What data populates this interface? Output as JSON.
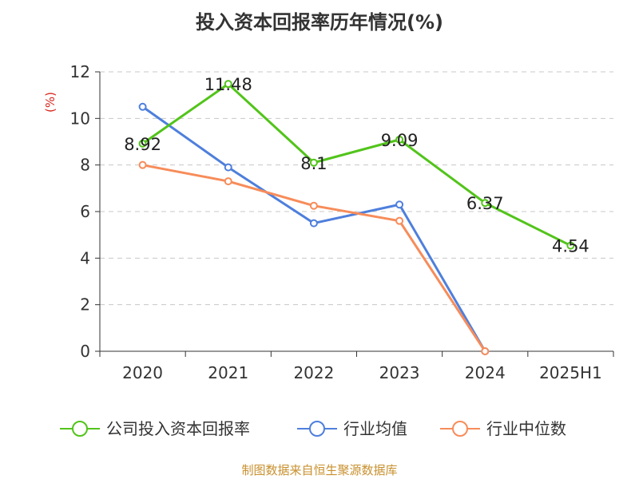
{
  "chart_data": {
    "type": "line",
    "title": "投入资本回报率历年情况(%)",
    "ylabel": "(%)",
    "categories": [
      "2020",
      "2021",
      "2022",
      "2023",
      "2024",
      "2025H1"
    ],
    "ylim": [
      0,
      12
    ],
    "yticks": [
      0,
      2,
      4,
      6,
      8,
      10,
      12
    ],
    "grid": true,
    "legend_position": "bottom",
    "series": [
      {
        "name": "公司投入资本回报率",
        "color": "#52c41a",
        "values": [
          8.92,
          11.48,
          8.1,
          9.09,
          6.37,
          4.54
        ],
        "labels": [
          "8.92",
          "11.48",
          "8.1",
          "9.09",
          "6.37",
          "4.54"
        ]
      },
      {
        "name": "行业均值",
        "color": "#4e7fdc",
        "values": [
          10.5,
          7.9,
          5.5,
          6.3,
          0,
          null
        ]
      },
      {
        "name": "行业中位数",
        "color": "#f78c5a",
        "values": [
          8.0,
          7.3,
          6.25,
          5.6,
          0,
          null
        ]
      }
    ]
  },
  "source_note": "制图数据来自恒生聚源数据库"
}
